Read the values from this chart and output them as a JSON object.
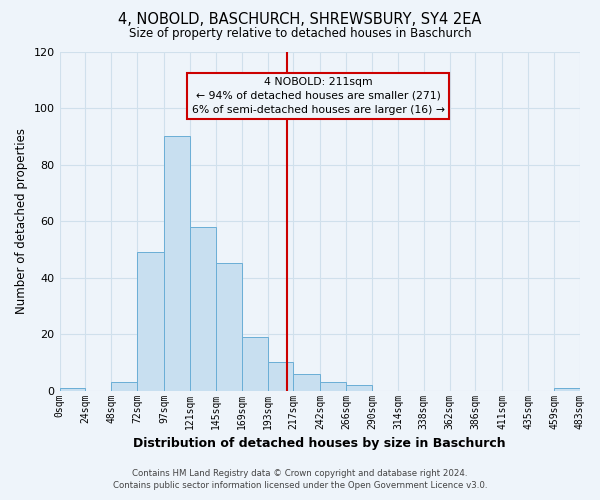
{
  "title": "4, NOBOLD, BASCHURCH, SHREWSBURY, SY4 2EA",
  "subtitle": "Size of property relative to detached houses in Baschurch",
  "xlabel": "Distribution of detached houses by size in Baschurch",
  "ylabel": "Number of detached properties",
  "footer_line1": "Contains HM Land Registry data © Crown copyright and database right 2024.",
  "footer_line2": "Contains public sector information licensed under the Open Government Licence v3.0.",
  "bin_edges": [
    0,
    24,
    48,
    72,
    97,
    121,
    145,
    169,
    193,
    217,
    242,
    266,
    290,
    314,
    338,
    362,
    386,
    411,
    435,
    459,
    483
  ],
  "bin_labels": [
    "0sqm",
    "24sqm",
    "48sqm",
    "72sqm",
    "97sqm",
    "121sqm",
    "145sqm",
    "169sqm",
    "193sqm",
    "217sqm",
    "242sqm",
    "266sqm",
    "290sqm",
    "314sqm",
    "338sqm",
    "362sqm",
    "386sqm",
    "411sqm",
    "435sqm",
    "459sqm",
    "483sqm"
  ],
  "counts": [
    1,
    0,
    3,
    49,
    90,
    58,
    45,
    19,
    10,
    6,
    3,
    2,
    0,
    0,
    0,
    0,
    0,
    0,
    0,
    1
  ],
  "bar_color": "#c8dff0",
  "bar_edge_color": "#6aaed6",
  "grid_color": "#d0e0ec",
  "bg_color": "#eef4fa",
  "property_line_x": 211,
  "annotation_title": "4 NOBOLD: 211sqm",
  "annotation_line1": "← 94% of detached houses are smaller (271)",
  "annotation_line2": "6% of semi-detached houses are larger (16) →",
  "annotation_box_color": "#cc0000",
  "ylim": [
    0,
    120
  ],
  "yticks": [
    0,
    20,
    40,
    60,
    80,
    100,
    120
  ]
}
